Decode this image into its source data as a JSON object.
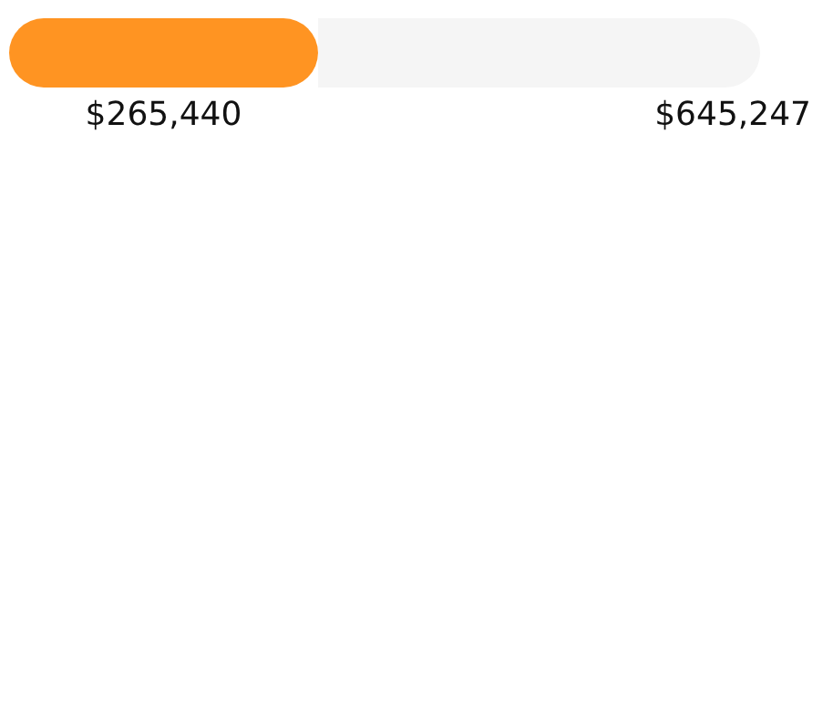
{
  "chart_data": {
    "type": "bar",
    "orientation": "horizontal",
    "stacked": true,
    "categories": [
      null
    ],
    "series": [
      {
        "color": "#ff9422",
        "values": [
          265440
        ],
        "value_labels": [
          "$265,440"
        ]
      },
      {
        "color": "#f5f5f5",
        "values": [
          379807
        ]
      }
    ],
    "totals": [
      "$645,247"
    ]
  }
}
